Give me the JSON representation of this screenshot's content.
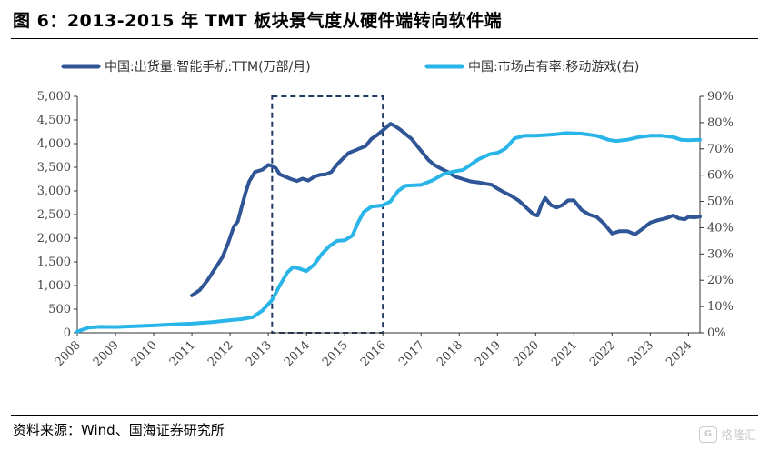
{
  "title": "图 6：2013-2015 年 TMT 板块景气度从硬件端转向软件端",
  "source": "资料来源：Wind、国海证券研究所",
  "watermark": "格隆汇",
  "chart_data": {
    "type": "line",
    "x_ticks": [
      "2008",
      "2009",
      "2010",
      "2011",
      "2012",
      "2013",
      "2014",
      "2015",
      "2016",
      "2017",
      "2018",
      "2019",
      "2020",
      "2021",
      "2022",
      "2023",
      "2024"
    ],
    "y_left": {
      "ticks": [
        "0",
        "500",
        "1,000",
        "1,500",
        "2,000",
        "2,500",
        "3,000",
        "3,500",
        "4,000",
        "4,500",
        "5,000"
      ],
      "lim": [
        0,
        5000
      ]
    },
    "y_right": {
      "ticks": [
        "0%",
        "10%",
        "20%",
        "30%",
        "40%",
        "50%",
        "60%",
        "70%",
        "80%",
        "90%"
      ],
      "lim": [
        0,
        90
      ]
    },
    "highlight_period": [
      "2013.1",
      "2016.0"
    ],
    "series": [
      {
        "name": "中国:出货量:智能手机:TTM(万部/月)",
        "axis": "left",
        "color": "#2f5597",
        "points": [
          [
            2011.0,
            790
          ],
          [
            2011.2,
            900
          ],
          [
            2011.4,
            1100
          ],
          [
            2011.6,
            1350
          ],
          [
            2011.8,
            1600
          ],
          [
            2011.95,
            1900
          ],
          [
            2012.1,
            2250
          ],
          [
            2012.2,
            2350
          ],
          [
            2012.3,
            2650
          ],
          [
            2012.4,
            2950
          ],
          [
            2012.5,
            3200
          ],
          [
            2012.65,
            3400
          ],
          [
            2012.85,
            3450
          ],
          [
            2013.0,
            3550
          ],
          [
            2013.1,
            3530
          ],
          [
            2013.2,
            3480
          ],
          [
            2013.3,
            3350
          ],
          [
            2013.45,
            3300
          ],
          [
            2013.6,
            3250
          ],
          [
            2013.75,
            3210
          ],
          [
            2013.9,
            3260
          ],
          [
            2014.05,
            3220
          ],
          [
            2014.2,
            3300
          ],
          [
            2014.35,
            3340
          ],
          [
            2014.5,
            3350
          ],
          [
            2014.65,
            3400
          ],
          [
            2014.8,
            3560
          ],
          [
            2014.95,
            3680
          ],
          [
            2015.1,
            3800
          ],
          [
            2015.25,
            3850
          ],
          [
            2015.4,
            3900
          ],
          [
            2015.55,
            3950
          ],
          [
            2015.7,
            4100
          ],
          [
            2015.85,
            4180
          ],
          [
            2016.0,
            4280
          ],
          [
            2016.1,
            4350
          ],
          [
            2016.2,
            4420
          ],
          [
            2016.3,
            4380
          ],
          [
            2016.45,
            4300
          ],
          [
            2016.6,
            4200
          ],
          [
            2016.75,
            4100
          ],
          [
            2016.9,
            3950
          ],
          [
            2017.05,
            3800
          ],
          [
            2017.2,
            3650
          ],
          [
            2017.35,
            3550
          ],
          [
            2017.5,
            3480
          ],
          [
            2017.7,
            3400
          ],
          [
            2017.9,
            3300
          ],
          [
            2018.1,
            3250
          ],
          [
            2018.3,
            3200
          ],
          [
            2018.5,
            3180
          ],
          [
            2018.7,
            3150
          ],
          [
            2018.85,
            3130
          ],
          [
            2019.0,
            3050
          ],
          [
            2019.15,
            2980
          ],
          [
            2019.35,
            2900
          ],
          [
            2019.55,
            2800
          ],
          [
            2019.75,
            2650
          ],
          [
            2019.95,
            2500
          ],
          [
            2020.05,
            2480
          ],
          [
            2020.15,
            2700
          ],
          [
            2020.25,
            2850
          ],
          [
            2020.4,
            2700
          ],
          [
            2020.55,
            2650
          ],
          [
            2020.7,
            2700
          ],
          [
            2020.85,
            2800
          ],
          [
            2021.0,
            2800
          ],
          [
            2021.2,
            2600
          ],
          [
            2021.4,
            2500
          ],
          [
            2021.6,
            2450
          ],
          [
            2021.8,
            2300
          ],
          [
            2022.0,
            2100
          ],
          [
            2022.2,
            2150
          ],
          [
            2022.4,
            2150
          ],
          [
            2022.6,
            2080
          ],
          [
            2022.8,
            2200
          ],
          [
            2023.0,
            2330
          ],
          [
            2023.2,
            2380
          ],
          [
            2023.4,
            2420
          ],
          [
            2023.6,
            2480
          ],
          [
            2023.75,
            2420
          ],
          [
            2023.9,
            2400
          ],
          [
            2024.0,
            2450
          ],
          [
            2024.15,
            2440
          ],
          [
            2024.3,
            2460
          ]
        ]
      },
      {
        "name": "中国:市场占有率:移动游戏(右)",
        "axis": "right",
        "color": "#29b5e8",
        "points": [
          [
            2008.0,
            0.5
          ],
          [
            2008.3,
            2.0
          ],
          [
            2008.6,
            2.3
          ],
          [
            2009.0,
            2.2
          ],
          [
            2009.5,
            2.5
          ],
          [
            2010.0,
            2.8
          ],
          [
            2010.5,
            3.2
          ],
          [
            2011.0,
            3.5
          ],
          [
            2011.5,
            4.0
          ],
          [
            2012.0,
            4.8
          ],
          [
            2012.3,
            5.2
          ],
          [
            2012.6,
            6.0
          ],
          [
            2012.85,
            8.5
          ],
          [
            2013.1,
            12.5
          ],
          [
            2013.3,
            18.0
          ],
          [
            2013.5,
            23.0
          ],
          [
            2013.65,
            25.0
          ],
          [
            2013.8,
            24.5
          ],
          [
            2014.0,
            23.5
          ],
          [
            2014.2,
            26.0
          ],
          [
            2014.4,
            30.0
          ],
          [
            2014.6,
            33.0
          ],
          [
            2014.8,
            35.0
          ],
          [
            2015.0,
            35.2
          ],
          [
            2015.2,
            37.0
          ],
          [
            2015.35,
            42.0
          ],
          [
            2015.5,
            46.0
          ],
          [
            2015.7,
            48.0
          ],
          [
            2016.0,
            48.5
          ],
          [
            2016.2,
            50.0
          ],
          [
            2016.4,
            54.0
          ],
          [
            2016.6,
            56.0
          ],
          [
            2017.0,
            56.3
          ],
          [
            2017.3,
            58.0
          ],
          [
            2017.6,
            60.5
          ],
          [
            2017.9,
            61.5
          ],
          [
            2018.1,
            62.0
          ],
          [
            2018.3,
            64.0
          ],
          [
            2018.5,
            66.0
          ],
          [
            2018.8,
            68.0
          ],
          [
            2019.0,
            68.5
          ],
          [
            2019.2,
            70.0
          ],
          [
            2019.45,
            74.0
          ],
          [
            2019.7,
            75.0
          ],
          [
            2020.0,
            75.0
          ],
          [
            2020.5,
            75.5
          ],
          [
            2020.8,
            76.0
          ],
          [
            2021.2,
            75.8
          ],
          [
            2021.6,
            75.0
          ],
          [
            2021.9,
            73.5
          ],
          [
            2022.1,
            73.0
          ],
          [
            2022.4,
            73.5
          ],
          [
            2022.7,
            74.5
          ],
          [
            2023.0,
            75.0
          ],
          [
            2023.3,
            75.0
          ],
          [
            2023.6,
            74.5
          ],
          [
            2023.8,
            73.5
          ],
          [
            2024.0,
            73.3
          ],
          [
            2024.3,
            73.5
          ]
        ]
      }
    ]
  }
}
